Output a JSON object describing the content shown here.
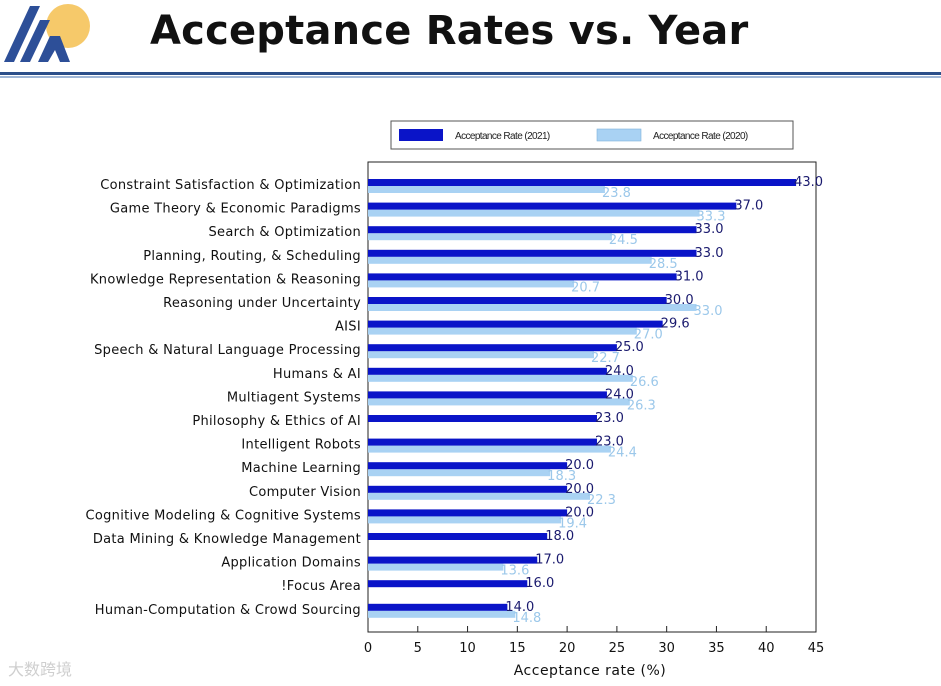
{
  "slide": {
    "title": "Acceptance Rates vs. Year",
    "watermark": "大数跨境"
  },
  "colors": {
    "series_2021": "#0a14c8",
    "series_2020": "#a9d2f3",
    "rule": "#2c4f8a"
  },
  "chart_data": {
    "type": "bar",
    "orientation": "horizontal",
    "xlabel": "Acceptance rate (%)",
    "xlim": [
      0,
      45
    ],
    "xticks": [
      0,
      5,
      10,
      15,
      20,
      25,
      30,
      35,
      40,
      45
    ],
    "legend_position": "top-right",
    "categories": [
      "Constraint Satisfaction & Optimization",
      "Game Theory & Economic Paradigms",
      "Search & Optimization",
      "Planning, Routing, & Scheduling",
      "Knowledge Representation & Reasoning",
      "Reasoning under Uncertainty",
      "AISI",
      "Speech & Natural Language Processing",
      "Humans & AI",
      "Multiagent Systems",
      "Philosophy & Ethics of AI",
      "Intelligent Robots",
      "Machine Learning",
      "Computer Vision",
      "Cognitive Modeling & Cognitive Systems",
      "Data Mining & Knowledge Management",
      "Application Domains",
      "!Focus Area",
      "Human-Computation & Crowd Sourcing"
    ],
    "series": [
      {
        "name": "Acceptance Rate (2021)",
        "values": [
          43.0,
          37.0,
          33.0,
          33.0,
          31.0,
          30.0,
          29.6,
          25.0,
          24.0,
          24.0,
          23.0,
          23.0,
          20.0,
          20.0,
          20.0,
          18.0,
          17.0,
          16.0,
          14.0
        ],
        "labels": [
          "43.0",
          "37.0",
          "33.0",
          "33.0",
          "31.0",
          "30.0",
          "29.6",
          "25.0",
          "24.0",
          "24.0",
          "23.0",
          "23.0",
          "20.0",
          "20.0",
          "20.0",
          "18.0",
          "17.0",
          "16.0",
          "14.0"
        ]
      },
      {
        "name": "Acceptance Rate (2020)",
        "values": [
          23.8,
          33.3,
          24.5,
          28.5,
          20.7,
          33.0,
          27.0,
          22.7,
          26.6,
          26.3,
          null,
          24.4,
          18.3,
          22.3,
          19.4,
          null,
          13.6,
          null,
          14.8
        ],
        "labels": [
          "23.8",
          "33.3",
          "24.5",
          "28.5",
          "20.7",
          "33.0",
          "27.0",
          "22.7",
          "26.6",
          "26.3",
          null,
          "24.4",
          "18.3",
          "22.3",
          "19.4",
          null,
          "13.6",
          null,
          "14.8"
        ]
      }
    ]
  }
}
